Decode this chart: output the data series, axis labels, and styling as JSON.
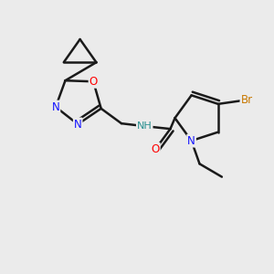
{
  "bg_color": "#ebebeb",
  "bond_color": "#1a1a1a",
  "bond_width": 1.8,
  "atom_colors": {
    "N": "#1414ff",
    "O": "#ff0000",
    "Br": "#c87800",
    "NH": "#2a9090",
    "C": "#1a1a1a"
  },
  "font_size": 8.5,
  "figsize": [
    3.0,
    3.0
  ],
  "dpi": 100
}
